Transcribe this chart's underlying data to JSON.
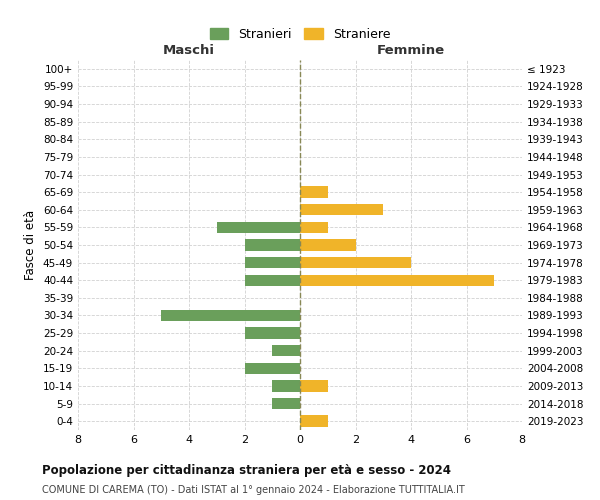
{
  "age_groups": [
    "100+",
    "95-99",
    "90-94",
    "85-89",
    "80-84",
    "75-79",
    "70-74",
    "65-69",
    "60-64",
    "55-59",
    "50-54",
    "45-49",
    "40-44",
    "35-39",
    "30-34",
    "25-29",
    "20-24",
    "15-19",
    "10-14",
    "5-9",
    "0-4"
  ],
  "birth_years": [
    "≤ 1923",
    "1924-1928",
    "1929-1933",
    "1934-1938",
    "1939-1943",
    "1944-1948",
    "1949-1953",
    "1954-1958",
    "1959-1963",
    "1964-1968",
    "1969-1973",
    "1974-1978",
    "1979-1983",
    "1984-1988",
    "1989-1993",
    "1994-1998",
    "1999-2003",
    "2004-2008",
    "2009-2013",
    "2014-2018",
    "2019-2023"
  ],
  "maschi": [
    0,
    0,
    0,
    0,
    0,
    0,
    0,
    0,
    0,
    3,
    2,
    2,
    2,
    0,
    5,
    2,
    1,
    2,
    1,
    1,
    0
  ],
  "femmine": [
    0,
    0,
    0,
    0,
    0,
    0,
    0,
    1,
    3,
    1,
    2,
    4,
    7,
    0,
    0,
    0,
    0,
    0,
    1,
    0,
    1
  ],
  "color_maschi": "#6a9f5b",
  "color_femmine": "#f0b429",
  "xlim": 8,
  "title": "Popolazione per cittadinanza straniera per età e sesso - 2024",
  "subtitle": "COMUNE DI CAREMA (TO) - Dati ISTAT al 1° gennaio 2024 - Elaborazione TUTTITALIA.IT",
  "ylabel_left": "Fasce di età",
  "xlabel_maschi": "Maschi",
  "xlabel_femmine": "Femmine",
  "legend_stranieri": "Stranieri",
  "legend_straniere": "Straniere",
  "bg_color": "#ffffff",
  "grid_color": "#cccccc",
  "zeroline_color": "#888855"
}
